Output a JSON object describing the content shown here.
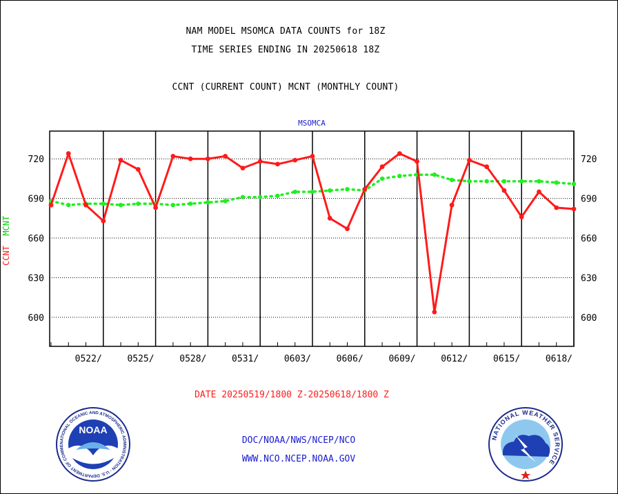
{
  "header": {
    "title_line1": "NAM MODEL MSOMCA DATA COUNTS for 18Z",
    "title_line2": "TIME SERIES ENDING IN 20250618 18Z",
    "title_line3": "CCNT (CURRENT COUNT) MCNT (MONTHLY COUNT)"
  },
  "station_label": "MSOMCA",
  "ylabel_ccnt": "CCNT",
  "ylabel_mcnt": "MCNT",
  "date_range": "DATE 20250519/1800 Z-20250618/1800 Z",
  "credits": {
    "line1": "DOC/NOAA/NWS/NCEP/NCO",
    "line2": "WWW.NCO.NCEP.NOAA.GOV"
  },
  "logos": {
    "noaa_inner_text": "NOAA",
    "noaa_ring_text": "NATIONAL OCEANIC AND ATMOSPHERIC ADMINISTRATION · U.S. DEPARTMENT OF COMMERCE",
    "nws_ring_text": "NATIONAL WEATHER SERVICE"
  },
  "colors": {
    "ccnt": "#ff1a1a",
    "mcnt": "#22ee22",
    "title_blue": "#1a1ad0"
  },
  "chart_data": {
    "type": "line",
    "title": "NAM MODEL MSOMCA DATA COUNTS for 18Z",
    "xlabel": "DATE 20250519/1800 Z-20250618/1800 Z",
    "ylabel": "CCNT  MCNT",
    "xlim": [
      0,
      30
    ],
    "ylim": [
      578,
      741
    ],
    "grid": true,
    "y_ticks": [
      600,
      630,
      660,
      690,
      720
    ],
    "x_tick_labels": [
      {
        "x": 3,
        "label": "0522/"
      },
      {
        "x": 6,
        "label": "0525/"
      },
      {
        "x": 9,
        "label": "0528/"
      },
      {
        "x": 12,
        "label": "0531/"
      },
      {
        "x": 15,
        "label": "0603/"
      },
      {
        "x": 18,
        "label": "0606/"
      },
      {
        "x": 21,
        "label": "0609/"
      },
      {
        "x": 24,
        "label": "0612/"
      },
      {
        "x": 27,
        "label": "0615/"
      },
      {
        "x": 30,
        "label": "0618/"
      }
    ],
    "series": [
      {
        "name": "CCNT",
        "style": "solid",
        "x": [
          0,
          1,
          2,
          3,
          4,
          5,
          6,
          7,
          8,
          9,
          10,
          11,
          12,
          13,
          14,
          15,
          16,
          17,
          18,
          19,
          20,
          21,
          22,
          23,
          24,
          25,
          26,
          27,
          28,
          29,
          30
        ],
        "values": [
          685,
          724,
          685,
          673,
          719,
          712,
          683,
          722,
          720,
          720,
          722,
          713,
          718,
          716,
          719,
          722,
          675,
          667,
          697,
          714,
          724,
          718,
          604,
          685,
          719,
          714,
          696,
          676,
          695,
          683,
          682
        ]
      },
      {
        "name": "MCNT",
        "style": "dotted",
        "x": [
          0,
          1,
          2,
          3,
          4,
          5,
          6,
          7,
          8,
          9,
          10,
          11,
          12,
          13,
          14,
          15,
          16,
          17,
          18,
          19,
          20,
          21,
          22,
          23,
          24,
          25,
          26,
          27,
          28,
          29,
          30
        ],
        "values": [
          688,
          685,
          686,
          686,
          685,
          686,
          686,
          685,
          686,
          687,
          688,
          691,
          691,
          692,
          695,
          695,
          696,
          697,
          696,
          705,
          707,
          708,
          708,
          704,
          703,
          703,
          703,
          703,
          703,
          702,
          701
        ]
      }
    ]
  }
}
